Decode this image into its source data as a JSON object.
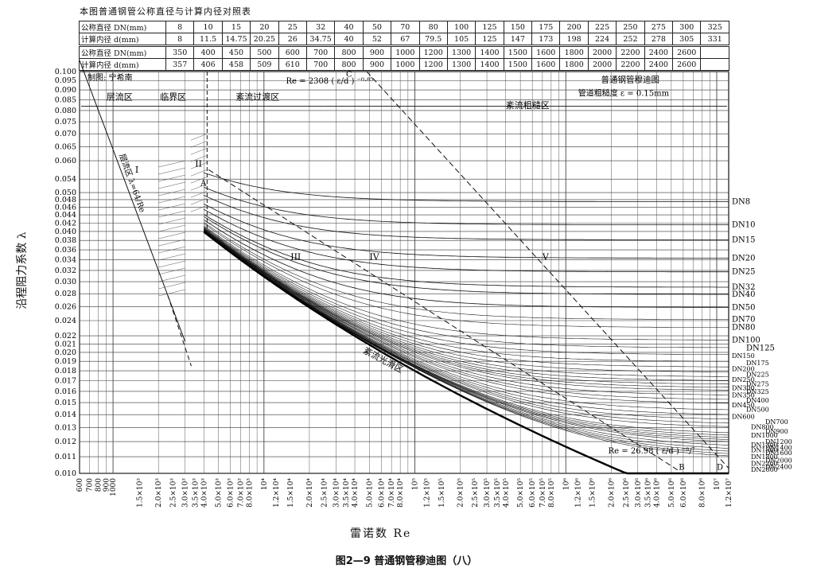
{
  "page": {
    "table_title": "本图普通钢管公称直径与计算内径对照表",
    "caption": "图2—9  普通钢管穆迪图（八）",
    "x_axis_title": "雷诺数 Re",
    "y_axis_title": "沿程阻力系数 λ"
  },
  "table": {
    "nominal_label": "公称直径 DN(mm)",
    "inner_label": "计算内径 d(mm)",
    "row1_dn": [
      "8",
      "10",
      "15",
      "20",
      "25",
      "32",
      "40",
      "50",
      "70",
      "80",
      "100",
      "125",
      "150",
      "175",
      "200",
      "225",
      "250",
      "275",
      "300",
      "325"
    ],
    "row1_d": [
      "8",
      "11.5",
      "14.75",
      "20.25",
      "26",
      "34.75",
      "40",
      "52",
      "67",
      "79.5",
      "105",
      "125",
      "147",
      "173",
      "198",
      "224",
      "252",
      "278",
      "305",
      "331"
    ],
    "row2_dn": [
      "350",
      "400",
      "450",
      "500",
      "600",
      "700",
      "800",
      "900",
      "1000",
      "1200",
      "1300",
      "1400",
      "1500",
      "1600",
      "1800",
      "2000",
      "2200",
      "2400",
      "2600",
      ""
    ],
    "row2_d": [
      "357",
      "406",
      "458",
      "509",
      "610",
      "700",
      "800",
      "900",
      "1000",
      "1200",
      "1300",
      "1400",
      "1500",
      "1600",
      "1800",
      "2000",
      "2200",
      "2400",
      "2600",
      ""
    ]
  },
  "annotations": {
    "author": "制图: 宁希南",
    "region_laminar": "层流区",
    "region_critical": "临界区",
    "region_transition": "紊流过渡区",
    "region_rough": "紊流粗糙区",
    "region_smooth": "紊流光滑区",
    "laminar_formula": "层流区 λ=64/Re",
    "boundary_upper": "Re = 2308 ( ε/d ) ⁻⁰·⁸⁵",
    "boundary_lower": "Re = 26.98 ( ε/d ) ⁻⁸/⁷",
    "chart_name": "普通钢管穆迪图",
    "roughness": "管道粗糙度 ε = 0.15mm",
    "roman": [
      "I",
      "II",
      "III",
      "IV",
      "V"
    ],
    "letters": [
      "A",
      "B",
      "C",
      "D"
    ]
  },
  "chart_data": {
    "type": "line",
    "xlabel": "雷诺数 Re",
    "ylabel": "沿程阻力系数 λ",
    "x_scale": "log",
    "y_scale": "log",
    "xlim": [
      600,
      12000000
    ],
    "ylim": [
      0.01,
      0.1
    ],
    "grid": true,
    "y_ticks": [
      0.01,
      0.011,
      0.012,
      0.013,
      0.014,
      0.015,
      0.016,
      0.017,
      0.018,
      0.019,
      0.02,
      0.021,
      0.022,
      0.024,
      0.026,
      0.028,
      0.03,
      0.032,
      0.034,
      0.036,
      0.038,
      0.04,
      0.042,
      0.044,
      0.046,
      0.048,
      0.05,
      0.054,
      0.06,
      0.065,
      0.07,
      0.075,
      0.08,
      0.085,
      0.09,
      0.095,
      0.1
    ],
    "y_tick_labels": [
      "0.010",
      "0.011",
      "0.012",
      "0.013",
      "0.014",
      "0.015",
      "0.016",
      "0.017",
      "0.018",
      "0.019",
      "0.020",
      "0.021",
      "0.022",
      "0.024",
      "0.026",
      "0.028",
      "0.030",
      "0.032",
      "0.034",
      "0.036",
      "0.038",
      "0.040",
      "0.042",
      "0.044",
      "0.046",
      "0.048",
      "0.050",
      "0.054",
      "0.060",
      "0.065",
      "0.070",
      "0.075",
      "0.080",
      "0.085",
      "0.090",
      "0.095",
      "0.100"
    ],
    "x_ticks": [
      600,
      700,
      800,
      900,
      1000,
      1500,
      2000,
      2500,
      3000,
      3500,
      4000,
      5000,
      6000,
      7000,
      8000,
      10000,
      12000,
      15000,
      20000,
      25000,
      30000,
      35000,
      40000,
      50000,
      60000,
      70000,
      80000,
      100000,
      120000,
      150000,
      200000,
      250000,
      300000,
      350000,
      400000,
      500000,
      600000,
      700000,
      800000,
      1000000,
      1200000,
      1500000,
      2000000,
      2500000,
      3000000,
      3500000,
      4000000,
      5000000,
      6000000,
      8000000,
      10000000,
      12000000
    ],
    "x_tick_labels": [
      "600",
      "700",
      "800",
      "900",
      "1000",
      "1.5×10³",
      "2.0×10³",
      "2.5×10³",
      "3.0×10³",
      "3.5×10³",
      "4.0×10³",
      "5.0×10³",
      "6.0×10³",
      "7.0×10³",
      "8.0×10³",
      "10⁴",
      "1.2×10⁴",
      "1.5×10⁴",
      "2.0×10⁴",
      "2.5×10⁴",
      "3.0×10⁴",
      "3.5×10⁴",
      "4.0×10⁴",
      "5.0×10⁴",
      "6.0×10⁴",
      "7.0×10⁴",
      "8.0×10⁴",
      "10⁵",
      "1.2×10⁵",
      "1.5×10⁵",
      "2.0×10⁵",
      "2.5×10⁵",
      "3.0×10⁵",
      "3.5×10⁵",
      "4.0×10⁵",
      "5.0×10⁵",
      "6.0×10⁵",
      "7.0×10⁵",
      "8.0×10⁵",
      "10⁶",
      "1.2×10⁶",
      "1.5×10⁶",
      "2.0×10⁶",
      "2.5×10⁶",
      "3.0×10⁶",
      "3.5×10⁶",
      "4.0×10⁶",
      "5.0×10⁶",
      "6.0×10⁶",
      "8.0×10⁶",
      "10⁷",
      "1.2×10⁷"
    ],
    "roughness_mm": 0.15,
    "laminar_curve": {
      "x": [
        600,
        3000
      ],
      "y": [
        0.1067,
        0.0213
      ]
    },
    "series": [
      {
        "name": "DN8",
        "d_mm": 8
      },
      {
        "name": "DN10",
        "d_mm": 11.5
      },
      {
        "name": "DN15",
        "d_mm": 14.75
      },
      {
        "name": "DN20",
        "d_mm": 20.25
      },
      {
        "name": "DN25",
        "d_mm": 26
      },
      {
        "name": "DN32",
        "d_mm": 34.75
      },
      {
        "name": "DN40",
        "d_mm": 40
      },
      {
        "name": "DN50",
        "d_mm": 52
      },
      {
        "name": "DN70",
        "d_mm": 67
      },
      {
        "name": "DN80",
        "d_mm": 79.5
      },
      {
        "name": "DN100",
        "d_mm": 105
      },
      {
        "name": "DN125",
        "d_mm": 125
      },
      {
        "name": "DN150",
        "d_mm": 147
      },
      {
        "name": "DN175",
        "d_mm": 173
      },
      {
        "name": "DN200",
        "d_mm": 198
      },
      {
        "name": "DN225",
        "d_mm": 224
      },
      {
        "name": "DN250",
        "d_mm": 252
      },
      {
        "name": "DN275",
        "d_mm": 278
      },
      {
        "name": "DN300",
        "d_mm": 305
      },
      {
        "name": "DN325",
        "d_mm": 331
      },
      {
        "name": "DN350",
        "d_mm": 357
      },
      {
        "name": "DN400",
        "d_mm": 406
      },
      {
        "name": "DN450",
        "d_mm": 458
      },
      {
        "name": "DN500",
        "d_mm": 509
      },
      {
        "name": "DN600",
        "d_mm": 610
      },
      {
        "name": "DN700",
        "d_mm": 700
      },
      {
        "name": "DN800",
        "d_mm": 800
      },
      {
        "name": "DN900",
        "d_mm": 900
      },
      {
        "name": "DN1000",
        "d_mm": 1000
      },
      {
        "name": "DN1200",
        "d_mm": 1200
      },
      {
        "name": "DN1300",
        "d_mm": 1300
      },
      {
        "name": "DN1400",
        "d_mm": 1400
      },
      {
        "name": "DN1500",
        "d_mm": 1500
      },
      {
        "name": "DN1600",
        "d_mm": 1600
      },
      {
        "name": "DN1800",
        "d_mm": 1800
      },
      {
        "name": "DN2000",
        "d_mm": 2000
      },
      {
        "name": "DN2200",
        "d_mm": 2200
      },
      {
        "name": "DN2400",
        "d_mm": 2400
      },
      {
        "name": "DN2600",
        "d_mm": 2600
      }
    ]
  }
}
